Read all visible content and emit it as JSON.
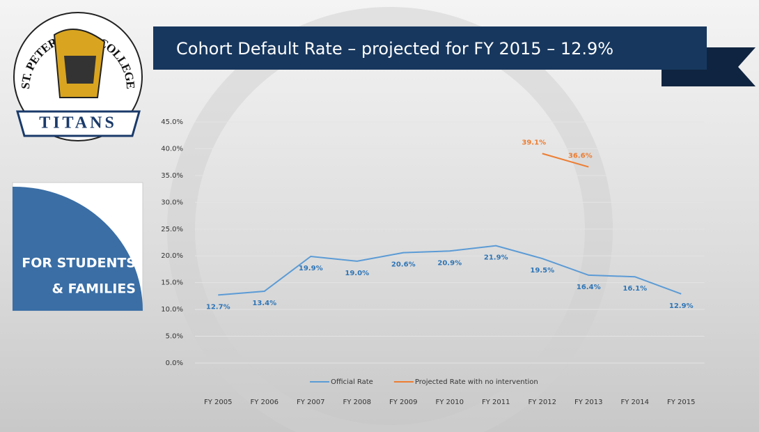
{
  "logo": {
    "arc_text": "ST. PETERSBURG COLLEGE",
    "banner": "TITANS"
  },
  "sidebar": {
    "lines": [
      "FOR STUDENTS",
      "& FAMILIES"
    ]
  },
  "chart_data": {
    "type": "line",
    "title": "Cohort Default Rate – projected for FY 2015 – 12.9%",
    "categories": [
      "FY 2005",
      "FY 2006",
      "FY 2007",
      "FY 2008",
      "FY 2009",
      "FY 2010",
      "FY 2011",
      "FY 2012",
      "FY 2013",
      "FY 2014",
      "FY 2015"
    ],
    "series": [
      {
        "name": "Official Rate",
        "color": "#5b9bd5",
        "values": [
          12.7,
          13.4,
          19.9,
          19.0,
          20.6,
          20.9,
          21.9,
          19.5,
          16.4,
          16.1,
          12.9
        ],
        "value_labels": [
          "12.7%",
          "13.4%",
          "19.9%",
          "19.0%",
          "20.6%",
          "20.9%",
          "21.9%",
          "19.5%",
          "16.4%",
          "16.1%",
          "12.9%"
        ]
      },
      {
        "name": "Projected Rate with no intervention",
        "color": "#ed7d31",
        "values": [
          null,
          null,
          null,
          null,
          null,
          null,
          null,
          39.1,
          36.6,
          null,
          null
        ],
        "value_labels": [
          null,
          null,
          null,
          null,
          null,
          null,
          null,
          "39.1%",
          "36.6%",
          null,
          null
        ]
      }
    ],
    "ylim": [
      0,
      45
    ],
    "yticks": [
      {
        "value": 0,
        "label": "0.0%"
      },
      {
        "value": 5,
        "label": "5.0%"
      },
      {
        "value": 10,
        "label": "10.0%"
      },
      {
        "value": 15,
        "label": "15.0%"
      },
      {
        "value": 20,
        "label": "20.0%"
      },
      {
        "value": 25,
        "label": "25.0%"
      },
      {
        "value": 30,
        "label": "30.0%"
      },
      {
        "value": 35,
        "label": "35.0%"
      },
      {
        "value": 40,
        "label": "40.0%"
      },
      {
        "value": 45,
        "label": "45.0%"
      }
    ],
    "grid": true,
    "legend": "bottom"
  }
}
